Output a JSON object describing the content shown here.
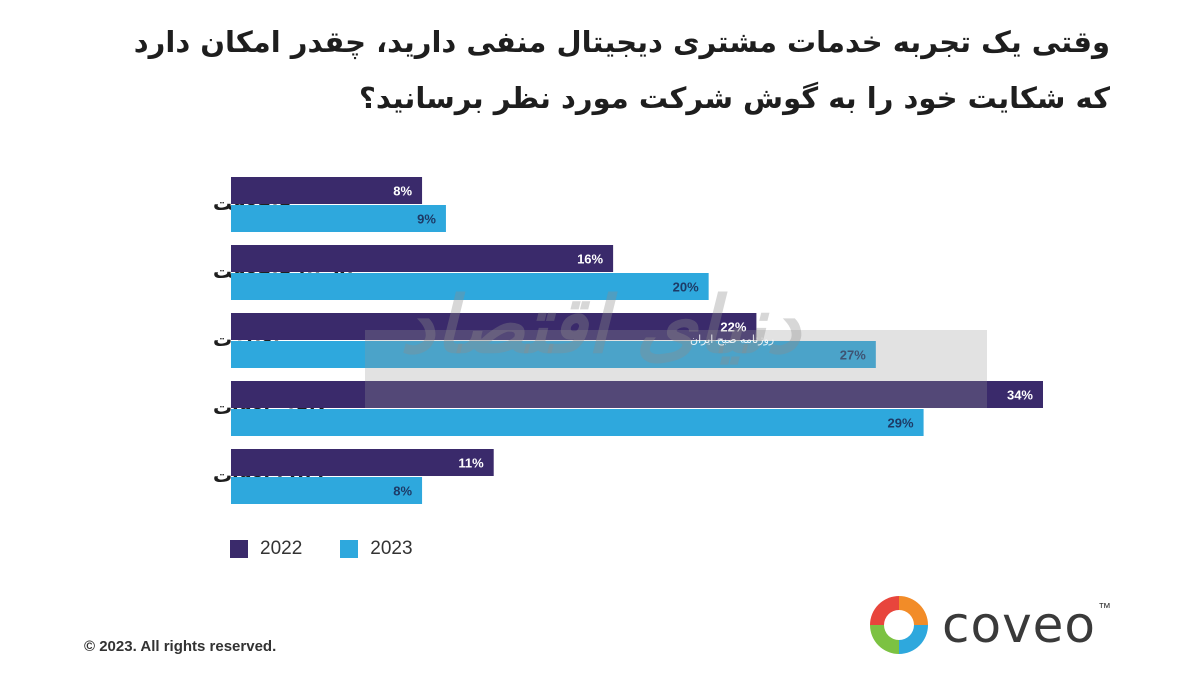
{
  "title": {
    "line1": "وقتی یک تجربه خدمات مشتری دیجیتال منفی دارید، چقدر  امکان دارد",
    "line2": "که شکایت خود را به گوش شرکت مورد نظر برسانید؟"
  },
  "chart_data": {
    "type": "bar",
    "orientation": "horizontal",
    "categories": [
      "هیچوقت",
      "تقریبا هیچوقت",
      "به‌ندرت",
      "گاهی اوقات",
      "اغلب اوقات"
    ],
    "series": [
      {
        "name": "2022",
        "values": [
          8,
          16,
          22,
          34,
          11
        ],
        "labels": [
          "8%",
          "16%",
          "22%",
          "34%",
          "11%"
        ],
        "color": "#3a2a6b",
        "label_color": "#ffffff"
      },
      {
        "name": "2023",
        "values": [
          9,
          20,
          27,
          29,
          8
        ],
        "labels": [
          "9%",
          "20%",
          "27%",
          "29%",
          "8%"
        ],
        "color": "#2ea8dd",
        "label_color": "#1d3a66"
      }
    ],
    "xlim": [
      0,
      34
    ],
    "grid": false,
    "legend": "bottom-left"
  },
  "legend": {
    "item_2022": "2022",
    "item_2023": "2023"
  },
  "footer": {
    "copyright": "© 2023. All rights reserved."
  },
  "logo": {
    "word": "coveo",
    "tm": "™"
  },
  "watermark": {
    "script": "دنیای اقتصاد",
    "small": "روزنامه صبح ایران"
  }
}
